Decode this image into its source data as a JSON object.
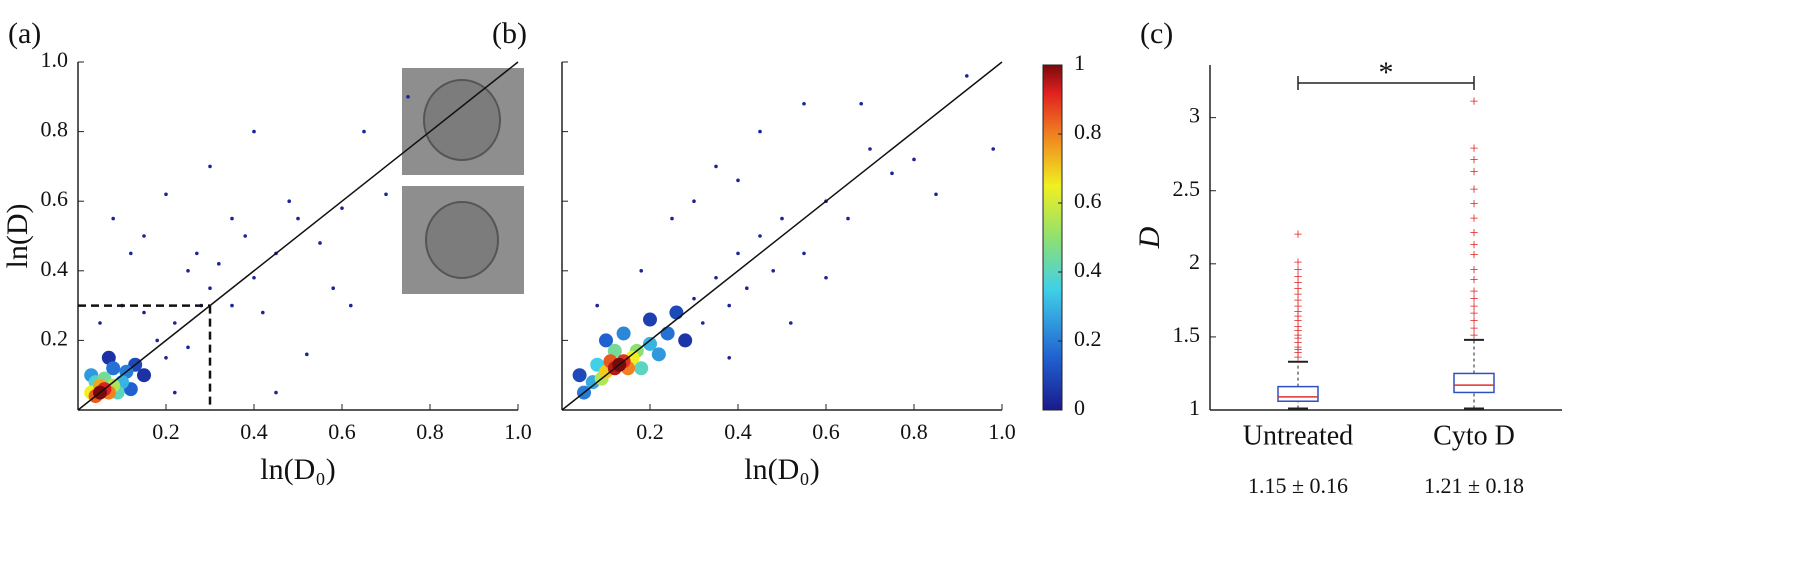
{
  "chart_data": [
    {
      "type": "scatter",
      "panel_label": "(a)",
      "x_label": "ln(D₀)",
      "y_label": "ln(D)",
      "xlim": [
        0,
        1
      ],
      "ylim": [
        0,
        1
      ],
      "xticks": [
        0.2,
        0.4,
        0.6,
        0.8,
        {
          "value": 1,
          "label": "1.0"
        }
      ],
      "yticks": [
        0.2,
        0.4,
        0.6,
        0.8,
        {
          "value": 1,
          "label": "1.0"
        }
      ],
      "ytick_labels": true,
      "identity_line": true,
      "threshold": 0.3,
      "x": [
        0.05,
        0.06,
        0.04,
        0.07,
        0.05,
        0.03,
        0.08,
        0.06,
        0.09,
        0.04,
        0.1,
        0.03,
        0.11,
        0.08,
        0.12,
        0.13,
        0.15,
        0.07,
        0.18,
        0.2,
        0.05,
        0.1,
        0.15,
        0.22,
        0.25,
        0.28,
        0.3,
        0.35,
        0.32,
        0.4,
        0.38,
        0.45,
        0.42,
        0.5,
        0.55,
        0.48,
        0.6,
        0.65,
        0.7,
        0.75,
        0.08,
        0.12,
        0.2,
        0.3,
        0.4,
        0.35,
        0.58,
        0.62,
        0.52,
        0.45,
        0.22,
        0.25,
        0.15,
        0.27
      ],
      "y": [
        0.05,
        0.06,
        0.04,
        0.05,
        0.07,
        0.05,
        0.07,
        0.09,
        0.05,
        0.08,
        0.08,
        0.1,
        0.11,
        0.12,
        0.06,
        0.13,
        0.1,
        0.15,
        0.2,
        0.15,
        0.25,
        0.3,
        0.28,
        0.25,
        0.18,
        0.3,
        0.35,
        0.3,
        0.42,
        0.38,
        0.5,
        0.45,
        0.28,
        0.55,
        0.48,
        0.6,
        0.58,
        0.8,
        0.62,
        0.9,
        0.55,
        0.45,
        0.62,
        0.7,
        0.8,
        0.55,
        0.35,
        0.3,
        0.16,
        0.05,
        0.05,
        0.4,
        0.5,
        0.45
      ],
      "density": [
        1,
        0.92,
        0.85,
        0.8,
        0.75,
        0.65,
        0.55,
        0.45,
        0.4,
        0.38,
        0.3,
        0.25,
        0.2,
        0.18,
        0.15,
        0.1,
        0.05,
        0.05,
        0.02,
        0.02,
        0.02,
        0.02,
        0.02,
        0.02,
        0.02,
        0.02,
        0.02,
        0.02,
        0.02,
        0.02,
        0.02,
        0.02,
        0.02,
        0.02,
        0.02,
        0.02,
        0.02,
        0.02,
        0.02,
        0.02,
        0.02,
        0.02,
        0.02,
        0.02,
        0.02,
        0.02,
        0.02,
        0.02,
        0.02,
        0.02,
        0.02,
        0.02,
        0.02,
        0.02
      ]
    },
    {
      "type": "scatter",
      "panel_label": "(b)",
      "x_label": "ln(D₀)",
      "xlim": [
        0,
        1
      ],
      "ylim": [
        0,
        1
      ],
      "xticks": [
        0.2,
        0.4,
        0.6,
        0.8,
        {
          "value": 1,
          "label": "1.0"
        }
      ],
      "yticks": [
        0.2,
        0.4,
        0.6,
        0.8,
        1
      ],
      "ytick_labels": false,
      "identity_line": true,
      "x": [
        0.13,
        0.12,
        0.14,
        0.11,
        0.15,
        0.1,
        0.16,
        0.09,
        0.17,
        0.12,
        0.18,
        0.08,
        0.2,
        0.07,
        0.22,
        0.14,
        0.05,
        0.24,
        0.1,
        0.26,
        0.04,
        0.2,
        0.28,
        0.3,
        0.32,
        0.35,
        0.38,
        0.4,
        0.42,
        0.45,
        0.48,
        0.5,
        0.55,
        0.6,
        0.65,
        0.68,
        0.7,
        0.75,
        0.8,
        0.85,
        0.92,
        0.98,
        0.45,
        0.35,
        0.3,
        0.25,
        0.4,
        0.55,
        0.52,
        0.38,
        0.6,
        0.08,
        0.18
      ],
      "y": [
        0.13,
        0.12,
        0.14,
        0.14,
        0.12,
        0.11,
        0.15,
        0.09,
        0.17,
        0.17,
        0.12,
        0.13,
        0.19,
        0.08,
        0.16,
        0.22,
        0.05,
        0.22,
        0.2,
        0.28,
        0.1,
        0.26,
        0.2,
        0.32,
        0.25,
        0.38,
        0.3,
        0.45,
        0.35,
        0.5,
        0.4,
        0.55,
        0.88,
        0.6,
        0.55,
        0.88,
        0.75,
        0.68,
        0.72,
        0.62,
        0.96,
        0.75,
        0.8,
        0.7,
        0.6,
        0.55,
        0.66,
        0.45,
        0.25,
        0.15,
        0.38,
        0.3,
        0.4
      ],
      "density": [
        1,
        0.95,
        0.9,
        0.85,
        0.8,
        0.7,
        0.65,
        0.55,
        0.5,
        0.45,
        0.4,
        0.35,
        0.3,
        0.28,
        0.25,
        0.22,
        0.2,
        0.18,
        0.15,
        0.1,
        0.1,
        0.08,
        0.06,
        0.02,
        0.02,
        0.02,
        0.02,
        0.02,
        0.02,
        0.02,
        0.02,
        0.02,
        0.02,
        0.02,
        0.02,
        0.02,
        0.02,
        0.02,
        0.02,
        0.02,
        0.02,
        0.02,
        0.02,
        0.02,
        0.02,
        0.02,
        0.02,
        0.02,
        0.02,
        0.02,
        0.02,
        0.02,
        0.02
      ],
      "colorbar": {
        "clim": [
          0,
          1
        ],
        "ticks": [
          0,
          0.2,
          0.4,
          0.6,
          0.8,
          1
        ]
      }
    },
    {
      "type": "box",
      "panel_label": "(c)",
      "y_label": "D",
      "significance": "*",
      "categories": [
        "Untreated",
        "Cyto D"
      ],
      "stat_labels": [
        "1.15 ± 0.16",
        "1.21 ± 0.18"
      ],
      "ylim": [
        1,
        3.36
      ],
      "yticks": [
        1,
        1.5,
        2,
        2.5,
        3
      ],
      "boxes": [
        {
          "whisker_low": 1.01,
          "q1": 1.06,
          "median": 1.09,
          "q3": 1.16,
          "whisker_high": 1.33,
          "outliers": [
            1.35,
            1.38,
            1.4,
            1.42,
            1.45,
            1.48,
            1.5,
            1.53,
            1.56,
            1.6,
            1.63,
            1.66,
            1.7,
            1.74,
            1.78,
            1.82,
            1.86,
            1.9,
            1.95,
            2.0,
            2.19
          ]
        },
        {
          "whisker_low": 1.01,
          "q1": 1.12,
          "median": 1.17,
          "q3": 1.25,
          "whisker_high": 1.48,
          "outliers": [
            1.5,
            1.55,
            1.6,
            1.65,
            1.7,
            1.75,
            1.8,
            1.88,
            1.95,
            2.05,
            2.12,
            2.2,
            2.3,
            2.4,
            2.5,
            2.62,
            2.7,
            2.78,
            3.1
          ]
        }
      ]
    }
  ]
}
